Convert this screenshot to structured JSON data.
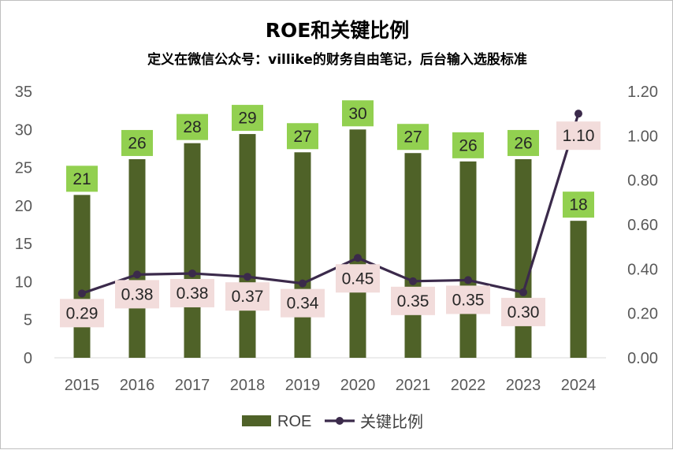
{
  "colors": {
    "bar": "#4f6228",
    "line": "#3b2a4b",
    "bar_label_bg": "#92d050",
    "line_label_bg": "#f2dcdb",
    "grid": "#d9d9d9"
  },
  "chart_data": {
    "type": "bar+line",
    "title": "ROE和关键比例",
    "subtitle": "定义在微信公众号：villike的财务自由笔记，后台输入选股标准",
    "categories": [
      "2015",
      "2016",
      "2017",
      "2018",
      "2019",
      "2020",
      "2021",
      "2022",
      "2023",
      "2024"
    ],
    "series": [
      {
        "name": "ROE",
        "type": "bar",
        "axis": "left",
        "values": [
          21.4,
          26.1,
          28.2,
          29.4,
          27.0,
          30.0,
          26.9,
          25.8,
          26.1,
          18.0
        ],
        "labels": [
          "21",
          "26",
          "28",
          "29",
          "27",
          "30",
          "27",
          "26",
          "26",
          "18"
        ]
      },
      {
        "name": "关键比例",
        "type": "line",
        "axis": "right",
        "values": [
          0.29,
          0.375,
          0.38,
          0.365,
          0.335,
          0.45,
          0.345,
          0.35,
          0.295,
          1.1
        ],
        "labels": [
          "0.29",
          "0.38",
          "0.38",
          "0.37",
          "0.34",
          "0.45",
          "0.35",
          "0.35",
          "0.30",
          "1.10"
        ]
      }
    ],
    "y_left": {
      "min": 0,
      "max": 35,
      "ticks": [
        "0",
        "5",
        "10",
        "15",
        "20",
        "25",
        "30",
        "35"
      ]
    },
    "y_right": {
      "min": 0,
      "max": 1.2,
      "ticks": [
        "0.00",
        "0.20",
        "0.40",
        "0.60",
        "0.80",
        "1.00",
        "1.20"
      ]
    },
    "legend": [
      "ROE",
      "关键比例"
    ],
    "legend_position": "bottom",
    "grid": false
  }
}
